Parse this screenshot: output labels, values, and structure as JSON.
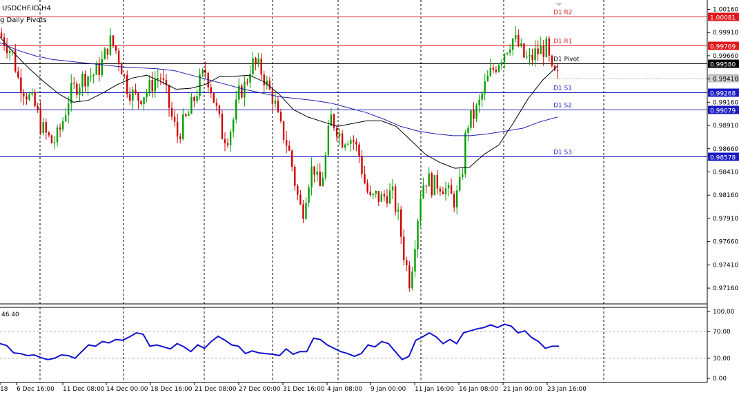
{
  "symbol_title": "USDCHF.ID,H4",
  "indicator_title": "g Daily Pivots",
  "rsi_value_label": "46.40",
  "price_axis_ticks": [
    "1.00160",
    "0.99910",
    "0.99660",
    "0.99410",
    "0.99160",
    "0.98910",
    "0.98660",
    "0.98410",
    "0.98160",
    "0.97910",
    "0.97660",
    "0.97410",
    "0.97160"
  ],
  "rsi_axis_ticks": [
    "100.00",
    "70.00",
    "30.00",
    "0.00"
  ],
  "pivot_lines": [
    {
      "label": "D1 R2",
      "price_label": "1.00081",
      "price": 1.00081,
      "color": "#e0181b"
    },
    {
      "label": "D1 R1",
      "price_label": "0.99769",
      "price": 0.99769,
      "color": "#e0181b"
    },
    {
      "label": "D1 Pivot",
      "price_label": "0.99580",
      "price": 0.9958,
      "color": "#000000"
    },
    {
      "label": "D1 S1",
      "price_label": "0.99268",
      "price": 0.99268,
      "color": "#1b1bc4"
    },
    {
      "label": "D1 S2",
      "price_label": "0.99079",
      "price": 0.99079,
      "color": "#1b1bc4"
    },
    {
      "label": "D1 S3",
      "price_label": "0.98578",
      "price": 0.98578,
      "color": "#1b1bc4"
    }
  ],
  "current_price_label": "0.99421",
  "time_axis_labels": [
    "18",
    "6 Dec 16:00",
    "11 Dec 08:00",
    "14 Dec 00:00",
    "18 Dec 16:00",
    "21 Dec 08:00",
    "27 Dec 00:00",
    "31 Dec 16:00",
    "4 Jan 08:00",
    "9 Jan 00:00",
    "11 Jan 16:00",
    "16 Jan 08:00",
    "21 Jan 00:00",
    "23 Jan 16:00"
  ],
  "colors": {
    "bull": "#00a000",
    "bear": "#d00000",
    "ma_fast": "#000000",
    "ma_slow": "#1f1fb0",
    "rsi": "#1010d0"
  },
  "chart_data": {
    "type": "candlestick",
    "ylim": [
      0.9699,
      1.0026
    ],
    "price_path": [
      0.9986,
      0.9978,
      0.9968,
      0.994,
      0.993,
      0.992,
      0.991,
      0.989,
      0.988,
      0.9872,
      0.988,
      0.99,
      0.9924,
      0.9932,
      0.994,
      0.9945,
      0.9945,
      0.995,
      0.9962,
      0.9982,
      0.9975,
      0.9958,
      0.9935,
      0.9925,
      0.992,
      0.9925,
      0.993,
      0.994,
      0.9945,
      0.9925,
      0.99,
      0.988,
      0.9892,
      0.9903,
      0.992,
      0.9938,
      0.995,
      0.993,
      0.9905,
      0.988,
      0.988,
      0.99,
      0.9928,
      0.9934,
      0.9958,
      0.9955,
      0.9948,
      0.993,
      0.992,
      0.989,
      0.9878,
      0.9855,
      0.982,
      0.9795,
      0.983,
      0.985,
      0.982,
      0.985,
      0.99,
      0.989,
      0.9876,
      0.988,
      0.9875,
      0.986,
      0.983,
      0.981,
      0.9815,
      0.9812,
      0.9818,
      0.9815,
      0.979,
      0.975,
      0.9722,
      0.9775,
      0.9825,
      0.9835,
      0.9825,
      0.983,
      0.9825,
      0.9815,
      0.981,
      0.983,
      0.9892,
      0.99,
      0.991,
      0.993,
      0.9945,
      0.9955,
      0.9965,
      0.9975,
      0.9985,
      0.9978,
      0.9965,
      0.996,
      0.9968,
      0.9972,
      0.9975,
      0.9946,
      0.9942
    ],
    "ma_fast_path": [
      0.9986,
      0.9968,
      0.9952,
      0.9938,
      0.9925,
      0.9916,
      0.9918,
      0.9926,
      0.9935,
      0.9942,
      0.9945,
      0.9938,
      0.993,
      0.9931,
      0.9935,
      0.9944,
      0.9944,
      0.9945,
      0.9938,
      0.9925,
      0.9908,
      0.99,
      0.9895,
      0.989,
      0.9893,
      0.9896,
      0.9896,
      0.989,
      0.9875,
      0.986,
      0.9851,
      0.9845,
      0.9846,
      0.986,
      0.987,
      0.9894,
      0.992,
      0.994,
      0.9955
    ],
    "ma_slow_path": [
      0.998,
      0.9972,
      0.9966,
      0.9962,
      0.996,
      0.9958,
      0.9956,
      0.9954,
      0.9953,
      0.9952,
      0.995,
      0.9945,
      0.994,
      0.9935,
      0.993,
      0.9926,
      0.9922,
      0.992,
      0.9918,
      0.9915,
      0.991,
      0.9905,
      0.9898,
      0.989,
      0.9885,
      0.9882,
      0.988,
      0.988,
      0.9882,
      0.9885,
      0.9888,
      0.9895,
      0.99
    ],
    "rsi_path": [
      52,
      49,
      38,
      37,
      34,
      35,
      31,
      28,
      30,
      35,
      34,
      30,
      40,
      50,
      48,
      55,
      53,
      58,
      57,
      62,
      68,
      66,
      48,
      50,
      47,
      44,
      52,
      47,
      40,
      50,
      45,
      55,
      63,
      57,
      50,
      48,
      37,
      41,
      38,
      37,
      36,
      34,
      44,
      36,
      40,
      40,
      60,
      58,
      50,
      45,
      40,
      37,
      33,
      37,
      50,
      47,
      55,
      52,
      40,
      28,
      33,
      57,
      62,
      68,
      62,
      52,
      58,
      52,
      68,
      71,
      74,
      76,
      80,
      76,
      81,
      78,
      68,
      71,
      61,
      55,
      45,
      48,
      48
    ],
    "rsi_levels": [
      70,
      30
    ],
    "rsi_range": [
      0,
      100
    ]
  }
}
